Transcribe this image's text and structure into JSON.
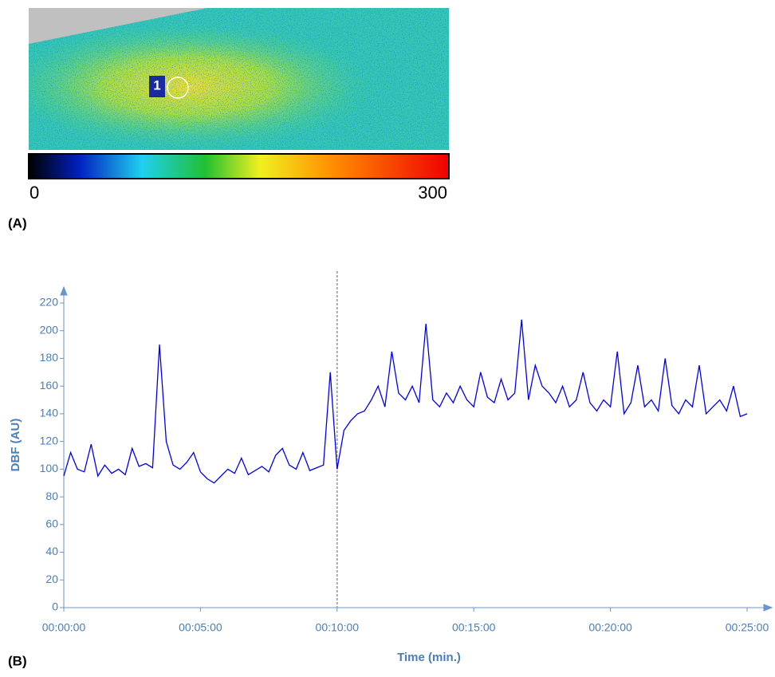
{
  "panel_a": {
    "label": "(A)",
    "roi_label": "1",
    "colorbar": {
      "ticks": [
        0,
        300
      ]
    }
  },
  "chart_data": {
    "type": "line",
    "panel_label": "(B)",
    "ylabel": "DBF (AU)",
    "xlabel": "Time (min.)",
    "color": "#0000ee",
    "marker_x": 600,
    "xlim": [
      0,
      1500
    ],
    "ylim": [
      0,
      220
    ],
    "xticks": [
      {
        "value": 0,
        "label": "00:00:00"
      },
      {
        "value": 300,
        "label": "00:05:00"
      },
      {
        "value": 600,
        "label": "00:10:00"
      },
      {
        "value": 900,
        "label": "00:15:00"
      },
      {
        "value": 1200,
        "label": "00:20:00"
      },
      {
        "value": 1500,
        "label": "00:25:00"
      }
    ],
    "yticks": [
      0,
      20,
      40,
      60,
      80,
      100,
      120,
      140,
      160,
      180,
      200,
      220
    ],
    "x": [
      0,
      15,
      30,
      45,
      60,
      75,
      90,
      105,
      120,
      135,
      150,
      165,
      180,
      195,
      210,
      225,
      240,
      255,
      270,
      285,
      300,
      315,
      330,
      345,
      360,
      375,
      390,
      405,
      420,
      435,
      450,
      465,
      480,
      495,
      510,
      525,
      540,
      555,
      570,
      585,
      600,
      615,
      630,
      645,
      660,
      675,
      690,
      705,
      720,
      735,
      750,
      765,
      780,
      795,
      810,
      825,
      840,
      855,
      870,
      885,
      900,
      915,
      930,
      945,
      960,
      975,
      990,
      1005,
      1020,
      1035,
      1050,
      1065,
      1080,
      1095,
      1110,
      1125,
      1140,
      1155,
      1170,
      1185,
      1200,
      1215,
      1230,
      1245,
      1260,
      1275,
      1290,
      1305,
      1320,
      1335,
      1350,
      1365,
      1380,
      1395,
      1410,
      1425,
      1440,
      1455,
      1470,
      1485,
      1500
    ],
    "values": [
      95,
      112,
      100,
      98,
      118,
      95,
      103,
      97,
      100,
      96,
      115,
      102,
      104,
      101,
      190,
      120,
      103,
      100,
      105,
      112,
      98,
      93,
      90,
      95,
      100,
      97,
      108,
      96,
      99,
      102,
      98,
      110,
      115,
      103,
      100,
      112,
      99,
      101,
      103,
      170,
      100,
      128,
      135,
      140,
      142,
      150,
      160,
      145,
      185,
      155,
      150,
      160,
      148,
      205,
      150,
      145,
      155,
      148,
      160,
      150,
      145,
      170,
      152,
      148,
      165,
      150,
      155,
      208,
      150,
      175,
      160,
      155,
      148,
      160,
      145,
      150,
      170,
      148,
      142,
      150,
      145,
      185,
      140,
      148,
      175,
      145,
      150,
      142,
      180,
      146,
      140,
      150,
      145,
      175,
      140,
      145,
      150,
      142,
      160,
      138,
      140
    ]
  }
}
